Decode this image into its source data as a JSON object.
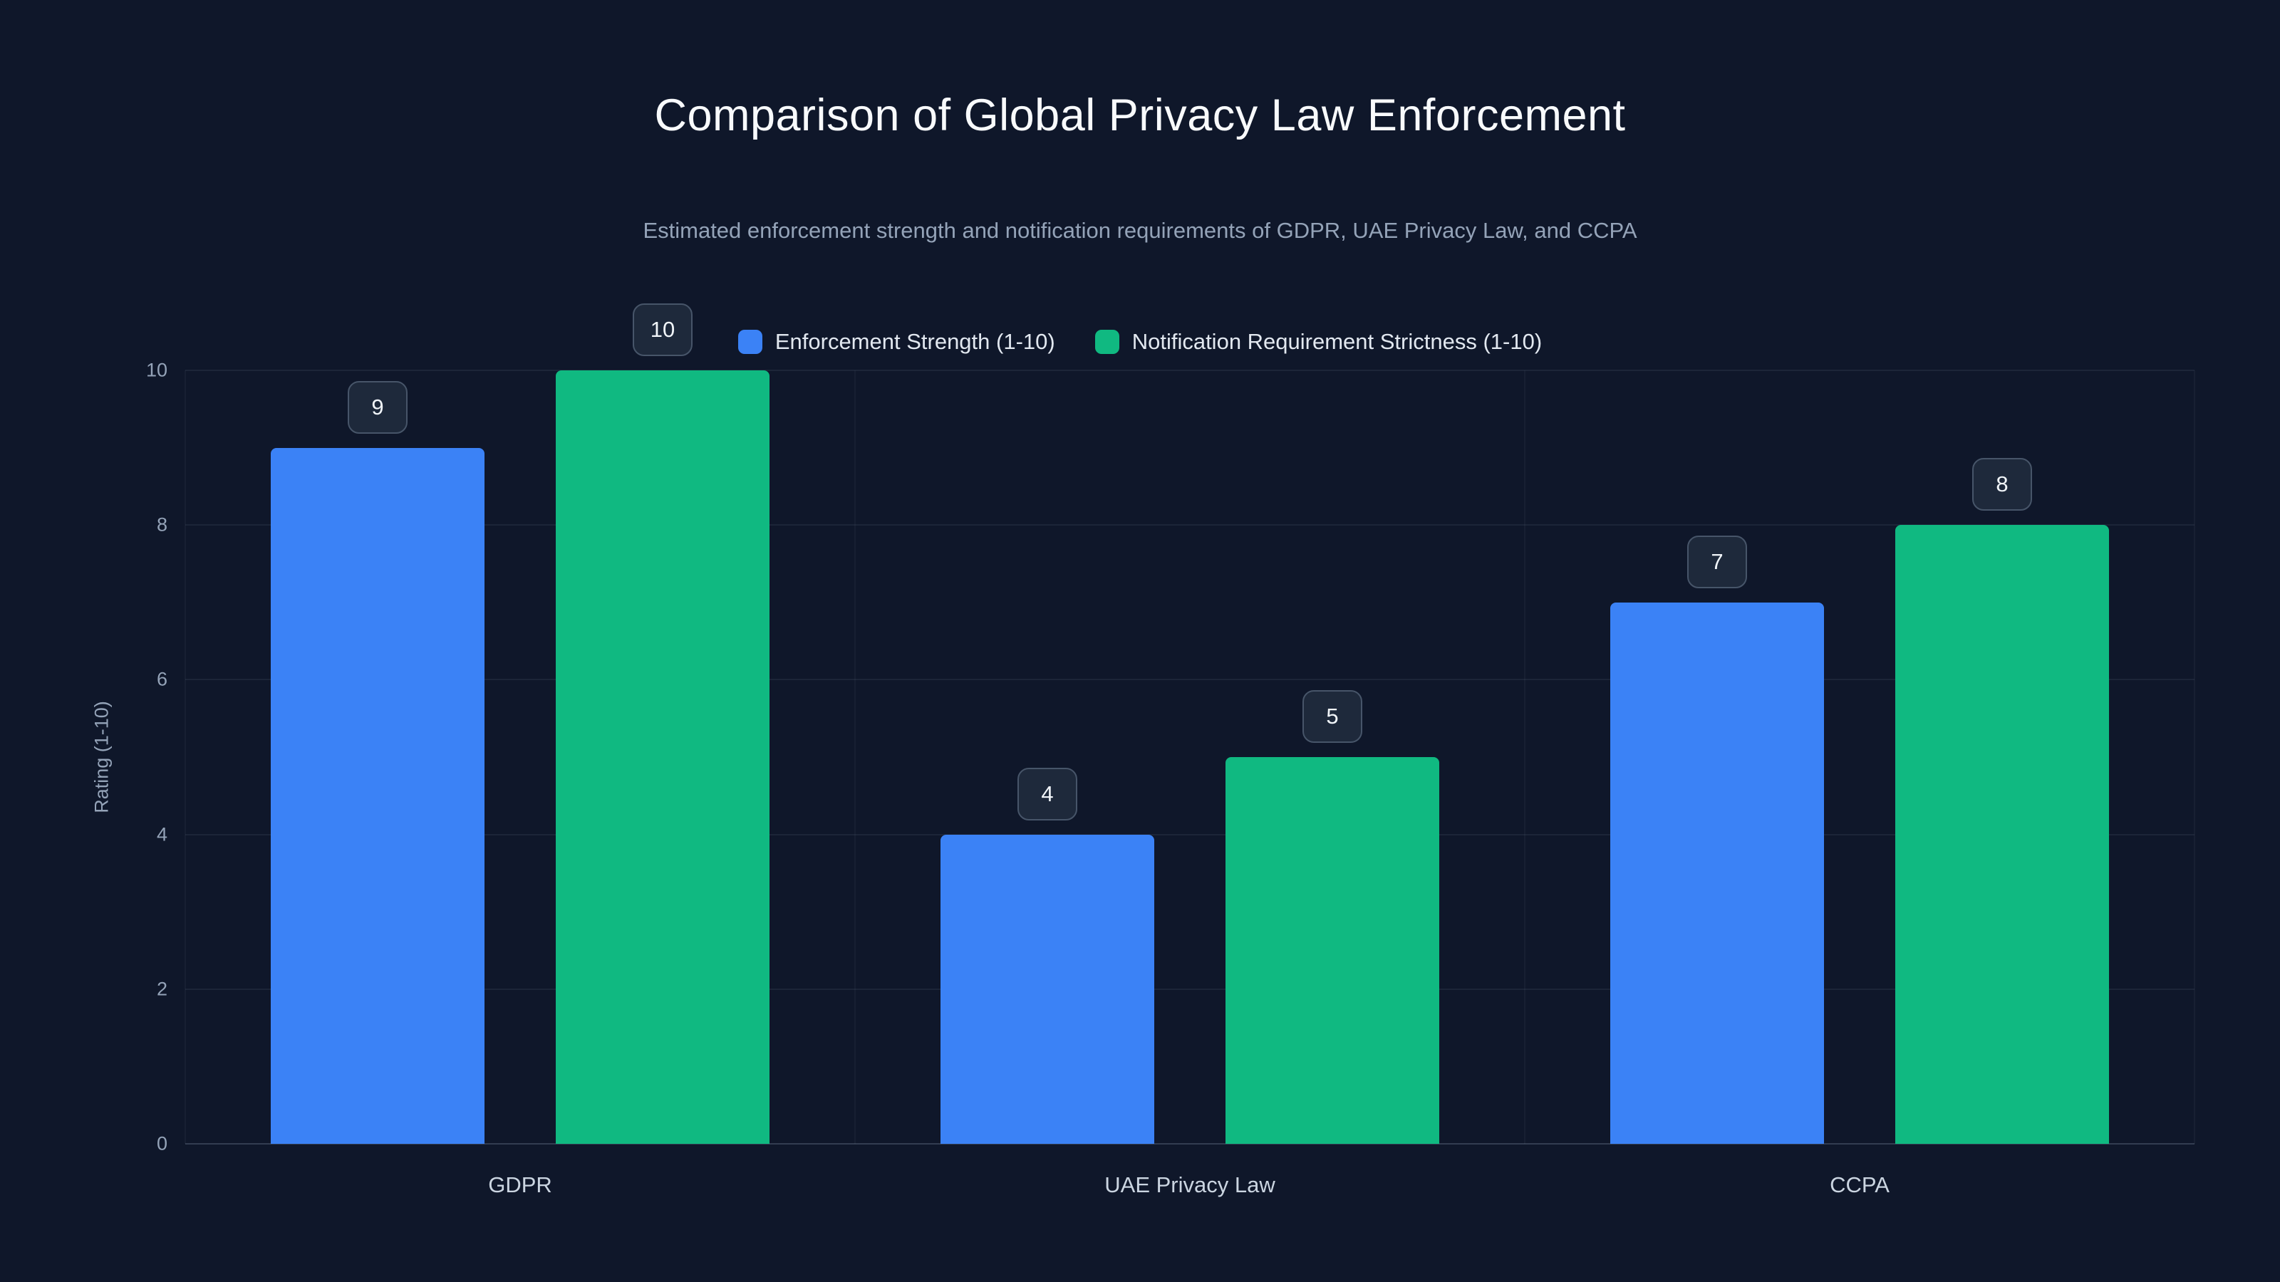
{
  "page": {
    "title": "Comparison of Global Privacy Law Enforcement",
    "subtitle": "Estimated enforcement strength and notification requirements of GDPR, UAE Privacy Law, and CCPA"
  },
  "chart_data": {
    "type": "bar",
    "title": "Comparison of Global Privacy Law Enforcement",
    "subtitle": "Estimated enforcement strength and notification requirements of GDPR, UAE Privacy Law, and CCPA",
    "categories": [
      "GDPR",
      "UAE Privacy Law",
      "CCPA"
    ],
    "series": [
      {
        "name": "Enforcement Strength (1-10)",
        "color": "#3b82f6",
        "values": [
          9,
          4,
          7
        ]
      },
      {
        "name": "Notification Requirement Strictness (1-10)",
        "color": "#10b981",
        "values": [
          10,
          5,
          8
        ]
      }
    ],
    "xlabel": "",
    "ylabel": "Rating (1-10)",
    "ylim": [
      0,
      10
    ],
    "yticks": [
      0,
      2,
      4,
      6,
      8,
      10
    ],
    "grid": true,
    "legend_position": "top-center",
    "value_labels": true
  },
  "colors": {
    "background": "#0f172a",
    "title_text": "#f8fafc",
    "subtitle_text": "#94a3b8",
    "axis_text": "#94a3b8",
    "category_text": "#cbd5e1",
    "gridline": "rgba(148,163,184,0.10)",
    "value_box_bg": "#1e293b",
    "value_box_border": "#475569",
    "series_enforcement": "#3b82f6",
    "series_notification": "#10b981"
  }
}
